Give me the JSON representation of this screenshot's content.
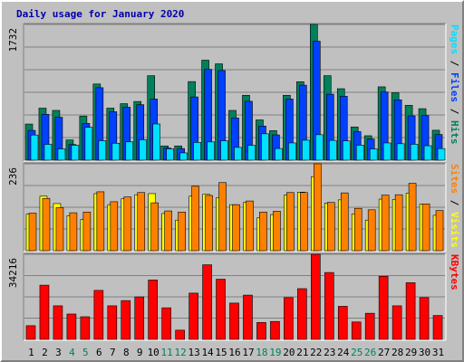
{
  "chart_data": {
    "type": "bar",
    "title": "Daily usage for January 2020",
    "colors": {
      "background": "#c0c0c0",
      "grid": "#808080",
      "hits": "#00805c",
      "files": "#0040ff",
      "pages": "#00e0ff",
      "visits": "#ffff00",
      "sites": "#ff8000",
      "kbytes": "#ff0000",
      "weekend_day": "#00805c",
      "weekday": "#000000",
      "title": "#0000aa"
    },
    "days": [
      "1",
      "2",
      "3",
      "4",
      "5",
      "6",
      "7",
      "8",
      "9",
      "10",
      "11",
      "12",
      "13",
      "14",
      "15",
      "16",
      "17",
      "18",
      "19",
      "20",
      "21",
      "22",
      "23",
      "24",
      "25",
      "26",
      "27",
      "28",
      "29",
      "30",
      "31"
    ],
    "weekend_days": [
      "4",
      "5",
      "11",
      "12",
      "18",
      "19",
      "25",
      "26"
    ],
    "panels": [
      {
        "id": "hits-files-pages",
        "ymax": 1732,
        "ymax_label": "1732",
        "legend": [
          {
            "text": "Pages",
            "color": "#00e0ff"
          },
          {
            "text": " / ",
            "color": "#000000"
          },
          {
            "text": "Files",
            "color": "#0040ff"
          },
          {
            "text": " / ",
            "color": "#000000"
          },
          {
            "text": "Hits",
            "color": "#00805c"
          }
        ],
        "series": [
          {
            "name": "Hits",
            "values": [
              461,
              664,
              635,
              258,
              563,
              972,
              664,
              721,
              749,
              1078,
              182,
              182,
              1003,
              1276,
              1229,
              635,
              828,
              514,
              377,
              828,
              1001,
              1732,
              1078,
              912,
              424,
              312,
              936,
              860,
              700,
              657,
              382
            ]
          },
          {
            "name": "Files",
            "values": [
              380,
              585,
              548,
              200,
              469,
              925,
              618,
              675,
              708,
              780,
              155,
              149,
              807,
              1159,
              1144,
              538,
              751,
              435,
              323,
              780,
              957,
              1518,
              842,
              816,
              364,
              270,
              871,
              770,
              566,
              569,
              328
            ]
          },
          {
            "name": "Pages",
            "values": [
              321,
              202,
              144,
              191,
              420,
              249,
              216,
              234,
              261,
              462,
              145,
              93,
              227,
              233,
              248,
              163,
              190,
              337,
              149,
              220,
              255,
              325,
              253,
              247,
              192,
              144,
              220,
              210,
              203,
              184,
              148
            ]
          }
        ]
      },
      {
        "id": "visits-sites",
        "ymax": 236,
        "ymax_label": "236",
        "legend": [
          {
            "text": "Sites",
            "color": "#ff8000"
          },
          {
            "text": " / ",
            "color": "#000000"
          },
          {
            "text": "Visits",
            "color": "#ffff00"
          }
        ],
        "series": [
          {
            "name": "Visits",
            "values": [
              99,
              148,
              128,
              95,
              85,
              155,
              125,
              141,
              152,
              155,
              101,
              83,
              148,
              153,
              144,
              125,
              131,
              89,
              98,
              151,
              159,
              201,
              129,
              138,
              100,
              83,
              140,
              139,
              156,
              126,
              96
            ]
          },
          {
            "name": "Sites",
            "values": [
              102,
              142,
              117,
              103,
              105,
              160,
              133,
              146,
              158,
              130,
              108,
              105,
              175,
              150,
              185,
              125,
              135,
              105,
              107,
              158,
              158,
              236,
              131,
              157,
              115,
              111,
              151,
              152,
              183,
              127,
              109
            ]
          }
        ]
      },
      {
        "id": "kbytes",
        "ymax": 34216,
        "ymax_label": "34216",
        "legend": [
          {
            "text": "KBytes",
            "color": "#ff0000"
          }
        ],
        "series": [
          {
            "name": "KBytes",
            "values": [
              5500,
              21800,
              13500,
              10200,
              9100,
              19700,
              13500,
              15600,
              17100,
              23900,
              12700,
              3700,
              18600,
              30000,
              24200,
              14600,
              17800,
              6800,
              7200,
              16800,
              20400,
              34216,
              26900,
              13300,
              7000,
              10500,
              25400,
              13500,
              22800,
              16800,
              9600
            ]
          }
        ]
      }
    ]
  }
}
